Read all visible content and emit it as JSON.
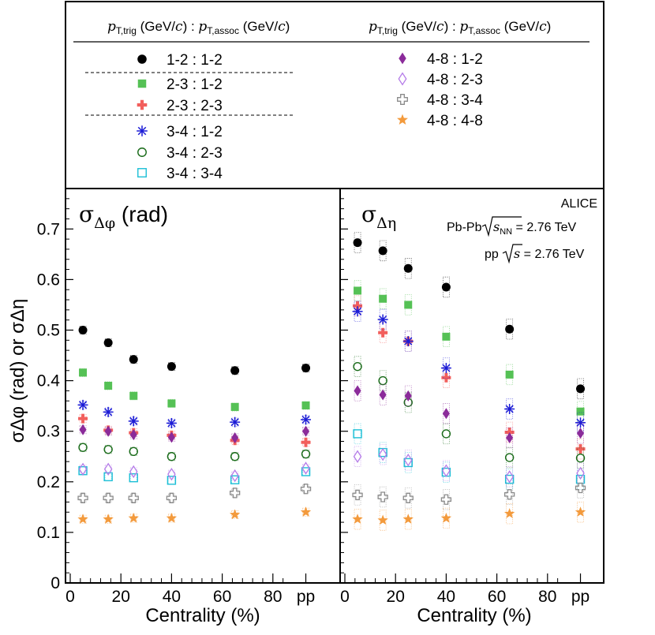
{
  "chart_data": {
    "type": "scatter",
    "xlabel": "Centrality (%)",
    "ylabel": "σΔφ (rad) or σΔη",
    "ylim": [
      0,
      0.78
    ],
    "xlim": [
      0,
      100
    ],
    "pp_position": 93,
    "x_ticks": [
      "0",
      "20",
      "40",
      "60",
      "80",
      "pp"
    ],
    "y_ticks": [
      "0",
      "0.1",
      "0.2",
      "0.3",
      "0.4",
      "0.5",
      "0.6",
      "0.7"
    ],
    "centrality_x": [
      5,
      15,
      25,
      40,
      65,
      "pp"
    ],
    "legend": {
      "header_left": {
        "pre": "p",
        "sub1": "T,trig",
        "mid": " (GeV/",
        "c": "c",
        "mid2": ") : ",
        "p2": "p",
        "sub2": "T,assoc",
        "mid3": " (GeV/",
        "c2": "c",
        "end": ")"
      },
      "header_right": {
        "pre": "p",
        "sub1": "T,trig",
        "mid": " (GeV/",
        "c": "c",
        "mid2": ") : ",
        "p2": "p",
        "sub2": "T,assoc",
        "mid3": " (GeV/",
        "c2": "c",
        "end": ")"
      }
    },
    "panels": [
      {
        "title": "σ",
        "title_sub": "Δφ",
        "title_unit": " (rad)",
        "series": [
          {
            "name": "1-2 : 1-2",
            "marker": "circle-filled",
            "color": "#000000",
            "values": [
              0.5,
              0.475,
              0.442,
              0.428,
              0.42,
              0.425
            ]
          },
          {
            "name": "2-3 : 1-2",
            "marker": "square-filled",
            "color": "#55c155",
            "values": [
              0.416,
              0.39,
              0.37,
              0.355,
              0.348,
              0.351
            ]
          },
          {
            "name": "2-3 : 2-3",
            "marker": "cross-filled",
            "color": "#f25f5c",
            "values": [
              0.325,
              0.302,
              0.297,
              0.292,
              0.282,
              0.278
            ]
          },
          {
            "name": "3-4 : 1-2",
            "marker": "asterisk",
            "color": "#1c1cd6",
            "values": [
              0.352,
              0.338,
              0.32,
              0.316,
              0.318,
              0.323
            ]
          },
          {
            "name": "3-4 : 2-3",
            "marker": "circle-open",
            "color": "#1a6b1a",
            "values": [
              0.268,
              0.264,
              0.26,
              0.25,
              0.25,
              0.255
            ]
          },
          {
            "name": "3-4 : 3-4",
            "marker": "square-open",
            "color": "#1cbfd6",
            "values": [
              0.222,
              0.21,
              0.208,
              0.203,
              0.204,
              0.22
            ]
          },
          {
            "name": "4-8 : 1-2",
            "marker": "diamond-filled",
            "color": "#8b2b9a",
            "values": [
              0.303,
              0.3,
              0.293,
              0.288,
              0.287,
              0.3
            ]
          },
          {
            "name": "4-8 : 2-3",
            "marker": "diamond-open",
            "color": "#b57ce8",
            "values": [
              0.225,
              0.225,
              0.22,
              0.215,
              0.212,
              0.227
            ]
          },
          {
            "name": "4-8 : 3-4",
            "marker": "cross-open",
            "color": "#8a8a8a",
            "values": [
              0.168,
              0.168,
              0.168,
              0.168,
              0.178,
              0.186
            ]
          },
          {
            "name": "4-8 : 4-8",
            "marker": "star",
            "color": "#f39a3c",
            "values": [
              0.126,
              0.126,
              0.128,
              0.128,
              0.135,
              0.14
            ]
          }
        ]
      },
      {
        "title": "σ",
        "title_sub": "Δη",
        "title_unit": "",
        "series": [
          {
            "name": "1-2 : 1-2",
            "marker": "circle-filled",
            "color": "#000000",
            "values": [
              0.673,
              0.657,
              0.622,
              0.585,
              0.502,
              0.384
            ]
          },
          {
            "name": "2-3 : 1-2",
            "marker": "square-filled",
            "color": "#55c155",
            "values": [
              0.578,
              0.562,
              0.55,
              0.487,
              0.412,
              0.339
            ]
          },
          {
            "name": "2-3 : 2-3",
            "marker": "cross-filled",
            "color": "#f25f5c",
            "values": [
              0.548,
              0.495,
              0.478,
              0.406,
              0.298,
              0.265
            ]
          },
          {
            "name": "3-4 : 1-2",
            "marker": "asterisk",
            "color": "#1c1cd6",
            "values": [
              0.537,
              0.521,
              0.478,
              0.425,
              0.344,
              0.317
            ]
          },
          {
            "name": "3-4 : 2-3",
            "marker": "circle-open",
            "color": "#1a6b1a",
            "values": [
              0.428,
              0.4,
              0.357,
              0.295,
              0.248,
              0.247
            ]
          },
          {
            "name": "3-4 : 3-4",
            "marker": "square-open",
            "color": "#1cbfd6",
            "values": [
              0.295,
              0.258,
              0.238,
              0.219,
              0.205,
              0.205
            ]
          },
          {
            "name": "4-8 : 1-2",
            "marker": "diamond-filled",
            "color": "#8b2b9a",
            "values": [
              0.38,
              0.372,
              0.37,
              0.335,
              0.287,
              0.296
            ]
          },
          {
            "name": "4-8 : 2-3",
            "marker": "diamond-open",
            "color": "#b57ce8",
            "values": [
              0.25,
              0.254,
              0.243,
              0.222,
              0.21,
              0.217
            ]
          },
          {
            "name": "4-8 : 3-4",
            "marker": "cross-open",
            "color": "#8a8a8a",
            "values": [
              0.174,
              0.17,
              0.168,
              0.165,
              0.175,
              0.188
            ]
          },
          {
            "name": "4-8 : 4-8",
            "marker": "star",
            "color": "#f39a3c",
            "values": [
              0.126,
              0.124,
              0.126,
              0.128,
              0.137,
              0.14
            ]
          }
        ]
      }
    ],
    "annotations": {
      "experiment": "ALICE",
      "pbpb_label": "Pb-Pb",
      "pbpb_s": "s",
      "pbpb_nn": "NN",
      "pbpb_energy": " = 2.76 TeV",
      "pp_label": "pp",
      "pp_s": "s",
      "pp_energy": " = 2.76 TeV"
    }
  }
}
